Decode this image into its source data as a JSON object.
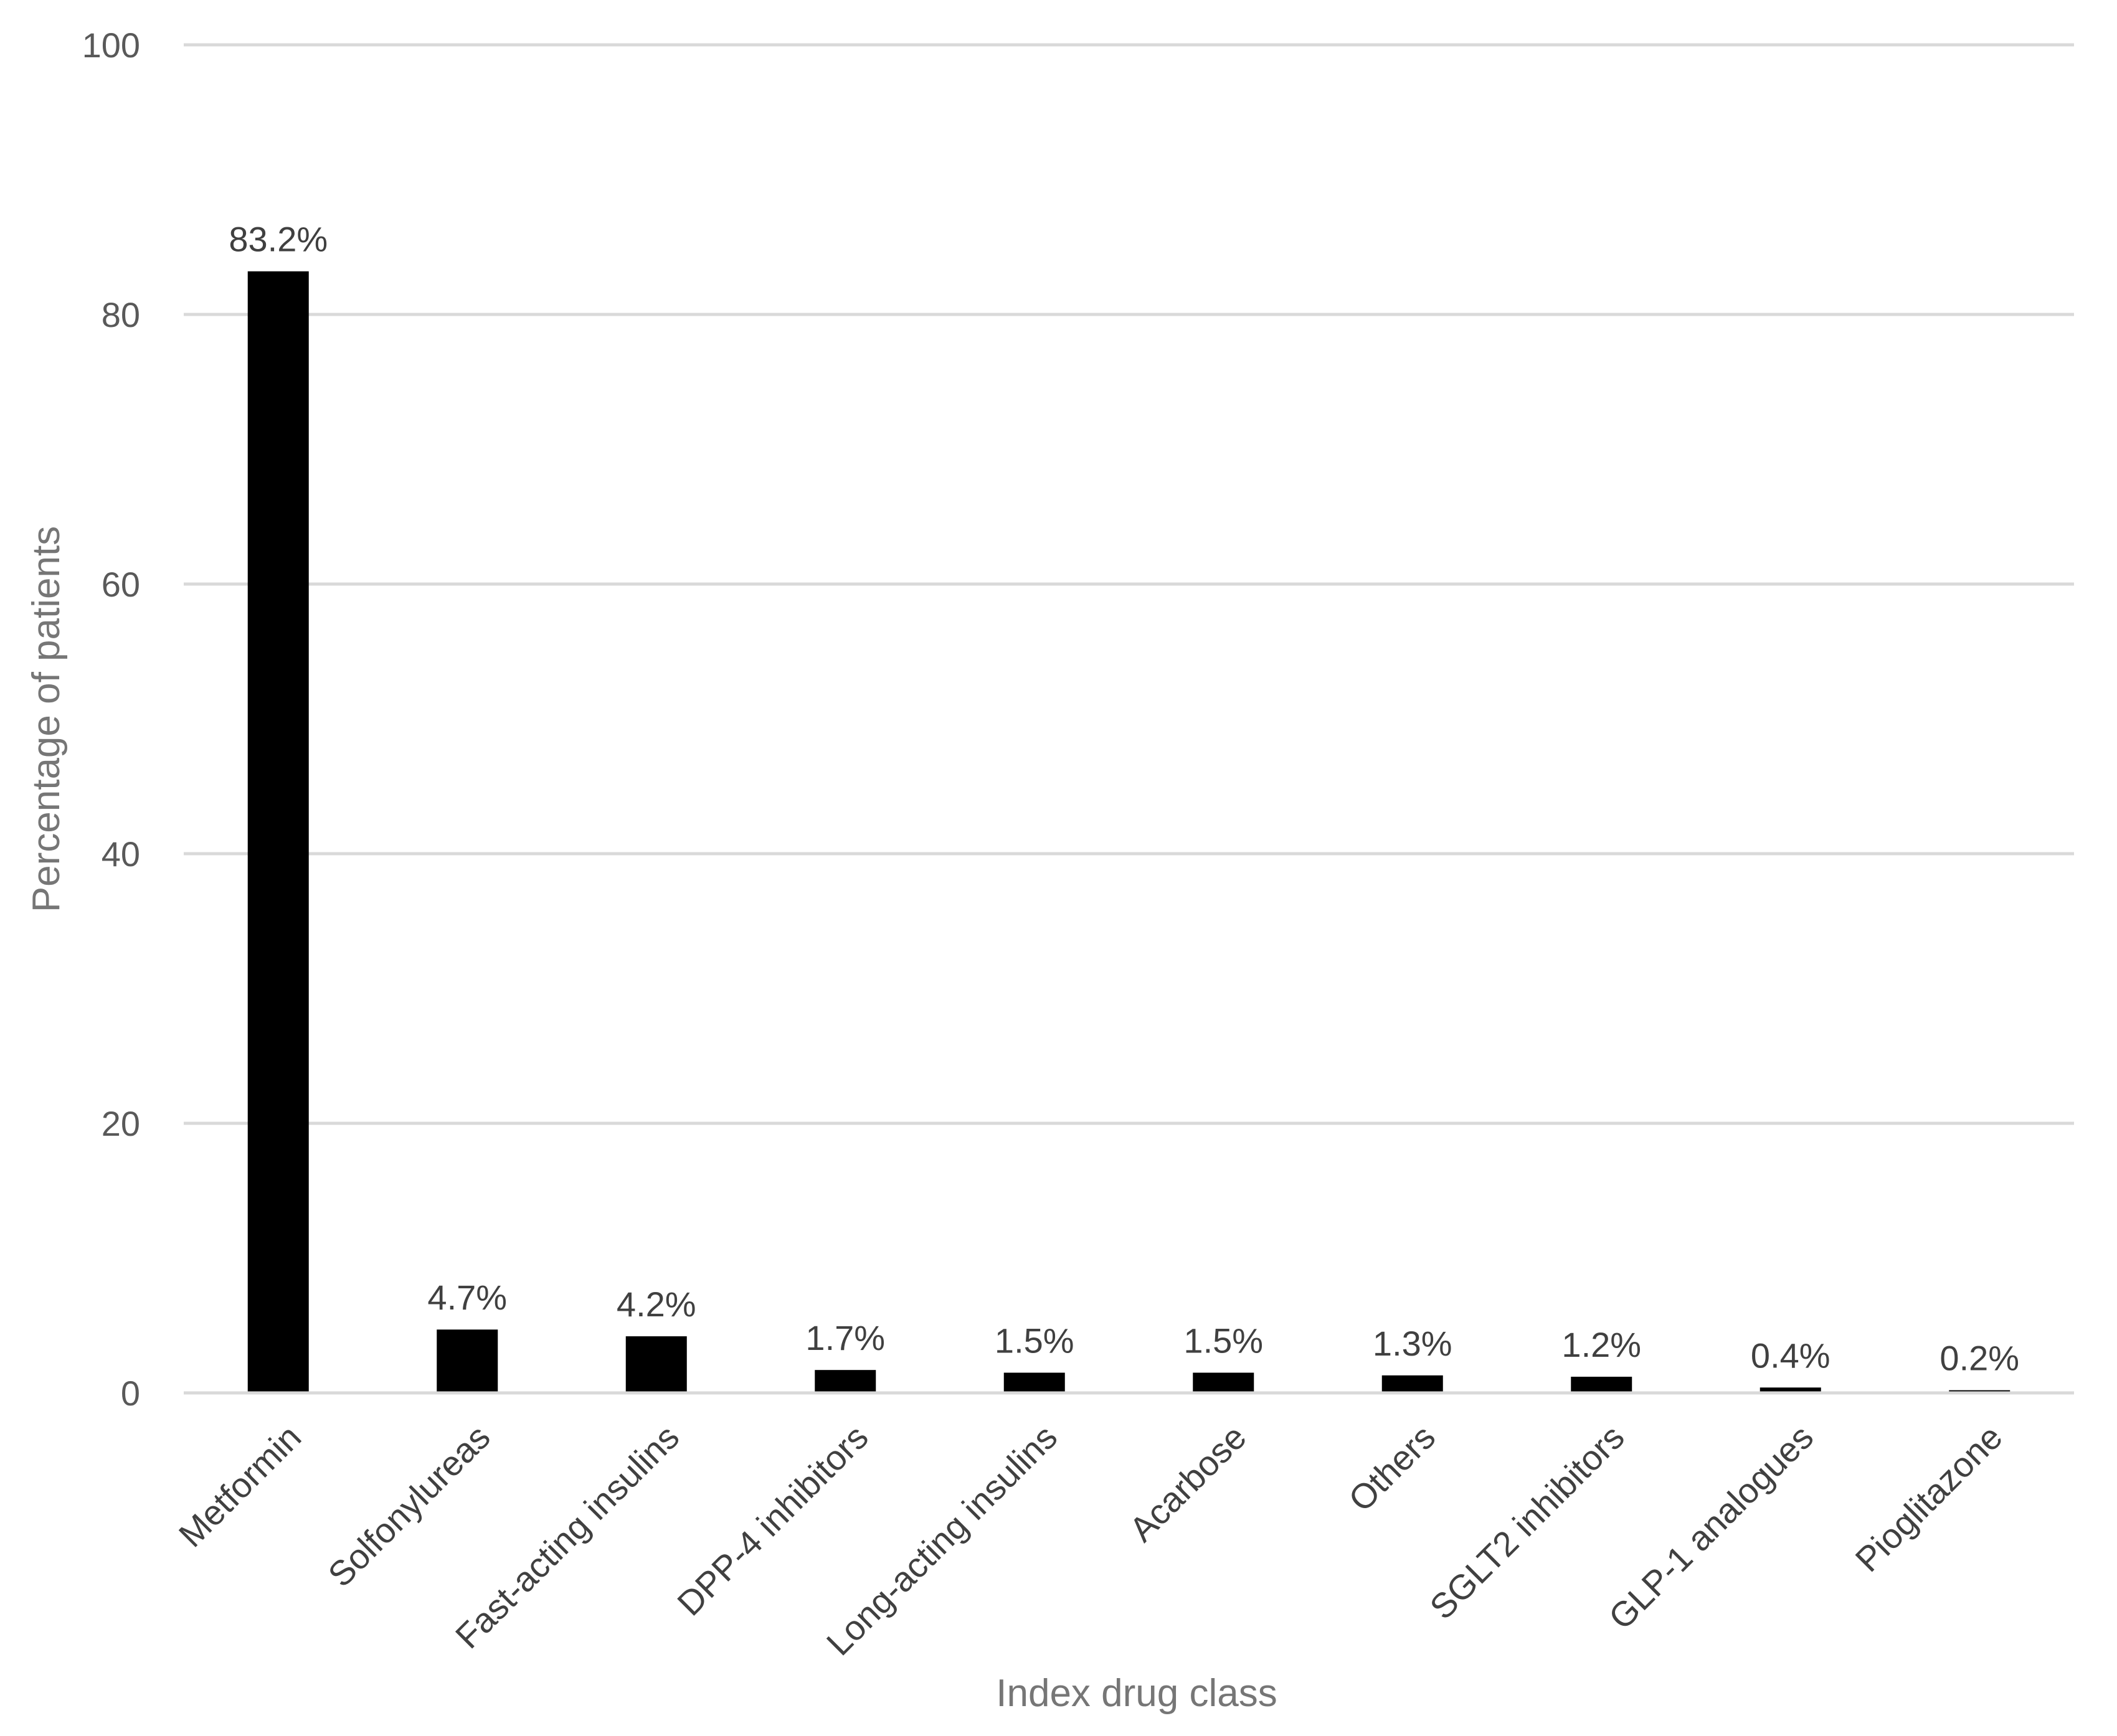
{
  "chart_data": {
    "type": "bar",
    "title": "",
    "xlabel": "Index drug class",
    "ylabel": "Percentage of patients",
    "ylim": [
      0,
      100
    ],
    "yticks": [
      0,
      20,
      40,
      60,
      80,
      100
    ],
    "grid": true,
    "bar_color": "#000000",
    "categories": [
      "Metformin",
      "Solfonylureas",
      "Fast-acting insulins",
      "DPP-4 inhibitors",
      "Long-acting insulins",
      "Acarbose",
      "Others",
      "SGLT2 inhibitors",
      "GLP-1 analogues",
      "Pioglitazone"
    ],
    "values": [
      83.2,
      4.7,
      4.2,
      1.7,
      1.5,
      1.5,
      1.3,
      1.2,
      0.4,
      0.2
    ],
    "data_labels": [
      "83.2%",
      "4.7%",
      "4.2%",
      "1.7%",
      "1.5%",
      "1.5%",
      "1.3%",
      "1.2%",
      "0.4%",
      "0.2%"
    ]
  }
}
